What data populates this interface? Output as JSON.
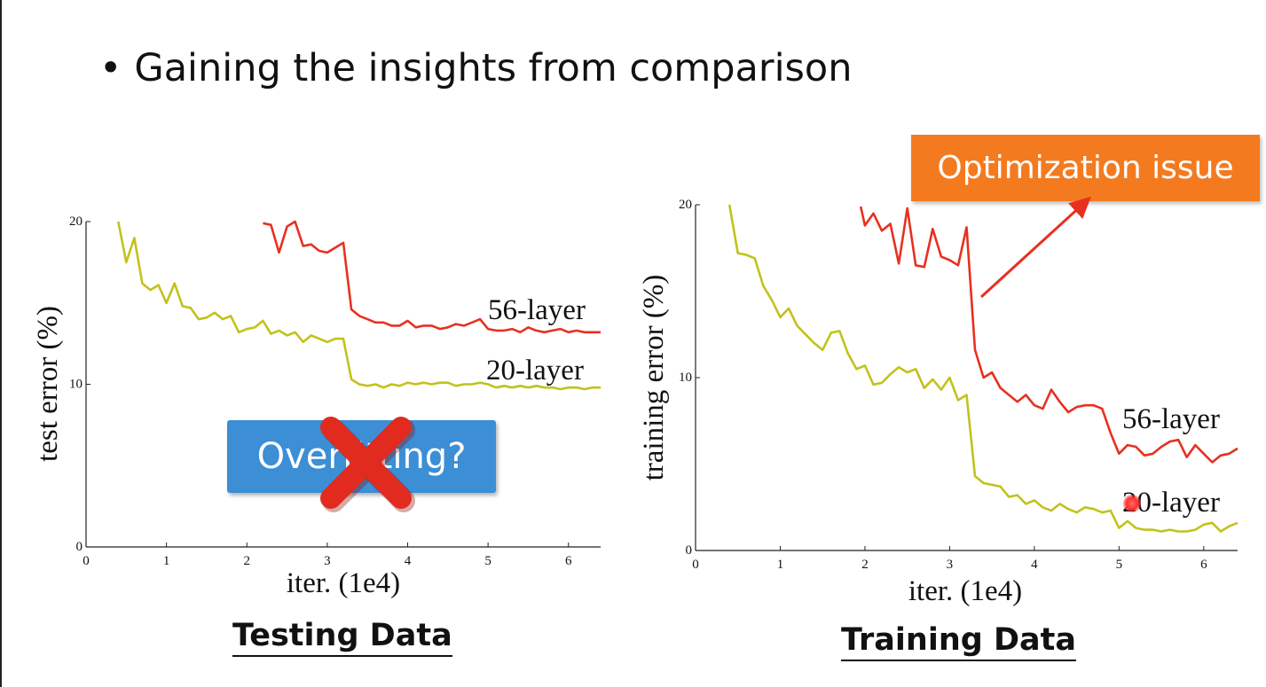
{
  "slide": {
    "bullet_text": "Gaining the insights from comparison",
    "left_caption": "Testing Data",
    "right_caption": "Training Data",
    "overfitting_label": "Overfitting?",
    "optimization_label": "Optimization issue"
  },
  "colors": {
    "series_56": "#e83020",
    "series_20": "#c2c21c",
    "overfit_box": "#3c8ed5",
    "optim_box": "#f47a1f",
    "cross": "#e02b1e"
  },
  "icons": {
    "cross": "x-mark-icon",
    "laser": "laser-pointer-icon"
  },
  "chart_data": [
    {
      "type": "line",
      "title": "",
      "xlabel": "iter. (1e4)",
      "ylabel": "test error (%)",
      "xlim": [
        0,
        6.4
      ],
      "ylim": [
        0,
        20
      ],
      "xticks": [
        0,
        1,
        2,
        3,
        4,
        5,
        6
      ],
      "yticks": [
        0,
        10,
        20
      ],
      "grid": false,
      "series": [
        {
          "name": "56-layer",
          "x": [
            2.2,
            2.3,
            2.4,
            2.5,
            2.6,
            2.7,
            2.8,
            2.9,
            3.0,
            3.1,
            3.2,
            3.3,
            3.4,
            3.5,
            3.6,
            3.7,
            3.8,
            3.9,
            4.0,
            4.1,
            4.2,
            4.3,
            4.4,
            4.5,
            4.6,
            4.7,
            4.8,
            4.9,
            5.0,
            5.1,
            5.2,
            5.3,
            5.4,
            5.5,
            5.6,
            5.7,
            5.8,
            5.9,
            6.0,
            6.1,
            6.2,
            6.3,
            6.4
          ],
          "values": [
            19.9,
            19.8,
            18.1,
            19.7,
            20.0,
            18.5,
            18.6,
            18.2,
            18.1,
            18.4,
            18.7,
            14.6,
            14.2,
            14.0,
            13.8,
            13.8,
            13.6,
            13.6,
            13.9,
            13.5,
            13.6,
            13.6,
            13.4,
            13.5,
            13.7,
            13.6,
            13.8,
            14.0,
            13.4,
            13.3,
            13.3,
            13.4,
            13.2,
            13.5,
            13.3,
            13.2,
            13.3,
            13.4,
            13.2,
            13.3,
            13.2,
            13.2,
            13.2
          ]
        },
        {
          "name": "20-layer",
          "x": [
            0.4,
            0.5,
            0.6,
            0.7,
            0.8,
            0.9,
            1.0,
            1.1,
            1.2,
            1.3,
            1.4,
            1.5,
            1.6,
            1.7,
            1.8,
            1.9,
            2.0,
            2.1,
            2.2,
            2.3,
            2.4,
            2.5,
            2.6,
            2.7,
            2.8,
            2.9,
            3.0,
            3.1,
            3.2,
            3.3,
            3.4,
            3.5,
            3.6,
            3.7,
            3.8,
            3.9,
            4.0,
            4.1,
            4.2,
            4.3,
            4.4,
            4.5,
            4.6,
            4.7,
            4.8,
            4.9,
            5.0,
            5.1,
            5.2,
            5.3,
            5.4,
            5.5,
            5.6,
            5.7,
            5.8,
            5.9,
            6.0,
            6.1,
            6.2,
            6.3,
            6.4
          ],
          "values": [
            20.0,
            17.5,
            19.0,
            16.2,
            15.8,
            16.1,
            15.0,
            16.2,
            14.8,
            14.7,
            14.0,
            14.1,
            14.4,
            14.0,
            14.2,
            13.2,
            13.4,
            13.5,
            13.9,
            13.1,
            13.3,
            13.0,
            13.2,
            12.6,
            13.0,
            12.8,
            12.6,
            12.8,
            12.8,
            10.3,
            10.0,
            9.9,
            10.0,
            9.8,
            10.0,
            9.9,
            10.1,
            10.0,
            10.1,
            10.0,
            10.1,
            10.1,
            9.9,
            10.0,
            10.0,
            10.1,
            10.0,
            9.8,
            9.9,
            9.8,
            9.9,
            9.8,
            9.9,
            9.8,
            9.8,
            9.7,
            9.8,
            9.8,
            9.7,
            9.8,
            9.8
          ]
        }
      ]
    },
    {
      "type": "line",
      "title": "",
      "xlabel": "iter. (1e4)",
      "ylabel": "training error (%)",
      "xlim": [
        0,
        6.4
      ],
      "ylim": [
        0,
        20
      ],
      "xticks": [
        0,
        1,
        2,
        3,
        4,
        5,
        6
      ],
      "yticks": [
        0,
        10,
        20
      ],
      "grid": false,
      "series": [
        {
          "name": "56-layer",
          "x": [
            1.95,
            2.0,
            2.1,
            2.2,
            2.3,
            2.4,
            2.5,
            2.6,
            2.7,
            2.8,
            2.9,
            3.0,
            3.1,
            3.2,
            3.3,
            3.4,
            3.5,
            3.6,
            3.7,
            3.8,
            3.9,
            4.0,
            4.1,
            4.2,
            4.3,
            4.4,
            4.5,
            4.6,
            4.7,
            4.8,
            4.9,
            5.0,
            5.1,
            5.2,
            5.3,
            5.4,
            5.5,
            5.6,
            5.7,
            5.8,
            5.9,
            6.0,
            6.1,
            6.2,
            6.3,
            6.4
          ],
          "values": [
            19.9,
            18.8,
            19.5,
            18.5,
            18.9,
            16.6,
            19.8,
            16.5,
            16.4,
            18.6,
            17.0,
            16.8,
            16.5,
            18.7,
            11.6,
            10.0,
            10.3,
            9.4,
            9.0,
            8.6,
            9.0,
            8.4,
            8.2,
            9.3,
            8.6,
            8.0,
            8.3,
            8.4,
            8.4,
            8.2,
            6.8,
            5.6,
            6.1,
            6.0,
            5.5,
            5.6,
            6.0,
            6.3,
            6.4,
            5.4,
            6.1,
            5.6,
            5.1,
            5.5,
            5.6,
            5.9
          ]
        },
        {
          "name": "20-layer",
          "x": [
            0.4,
            0.5,
            0.6,
            0.7,
            0.8,
            0.9,
            1.0,
            1.1,
            1.2,
            1.3,
            1.4,
            1.5,
            1.6,
            1.7,
            1.8,
            1.9,
            2.0,
            2.1,
            2.2,
            2.3,
            2.4,
            2.5,
            2.6,
            2.7,
            2.8,
            2.9,
            3.0,
            3.1,
            3.2,
            3.3,
            3.4,
            3.5,
            3.6,
            3.7,
            3.8,
            3.9,
            4.0,
            4.1,
            4.2,
            4.3,
            4.4,
            4.5,
            4.6,
            4.7,
            4.8,
            4.9,
            5.0,
            5.1,
            5.2,
            5.3,
            5.4,
            5.5,
            5.6,
            5.7,
            5.8,
            5.9,
            6.0,
            6.1,
            6.2,
            6.3,
            6.4
          ],
          "values": [
            20.0,
            17.2,
            17.1,
            16.9,
            15.3,
            14.5,
            13.5,
            14.0,
            13.0,
            12.5,
            12.0,
            11.6,
            12.6,
            12.7,
            11.4,
            10.5,
            10.7,
            9.6,
            9.7,
            10.2,
            10.6,
            10.3,
            10.5,
            9.4,
            9.9,
            9.3,
            10.0,
            8.7,
            9.0,
            4.3,
            3.9,
            3.8,
            3.7,
            3.1,
            3.2,
            2.7,
            2.9,
            2.5,
            2.3,
            2.7,
            2.4,
            2.2,
            2.5,
            2.4,
            2.2,
            2.3,
            1.3,
            1.7,
            1.3,
            1.2,
            1.2,
            1.1,
            1.2,
            1.1,
            1.1,
            1.2,
            1.5,
            1.6,
            1.1,
            1.4,
            1.6
          ]
        }
      ]
    }
  ]
}
